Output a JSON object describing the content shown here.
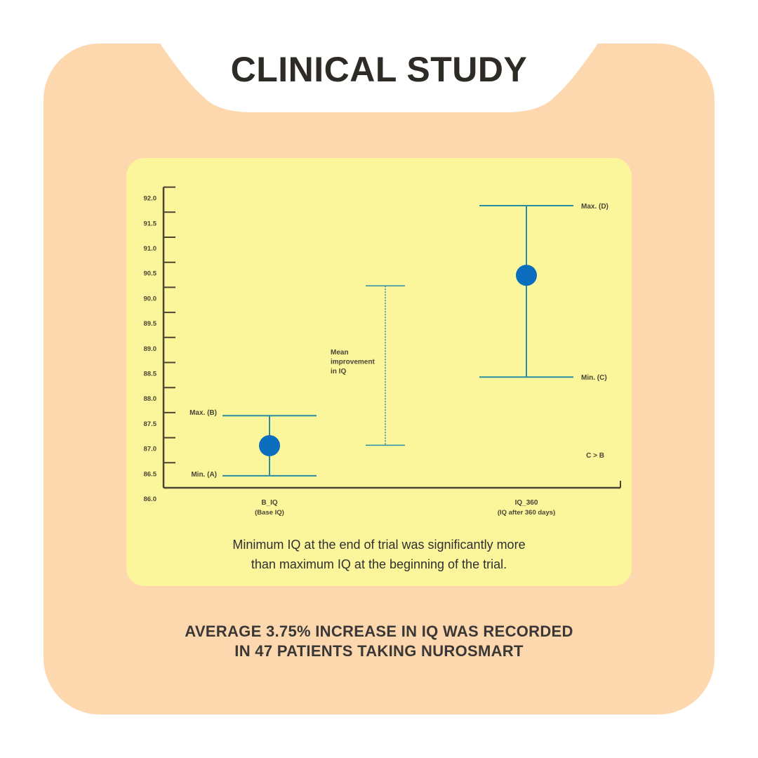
{
  "header": {
    "title": "CLINICAL STUDY"
  },
  "caption": {
    "line1": "Minimum IQ at the end of trial was significantly more",
    "line2": "than maximum IQ at the beginning of the trial."
  },
  "footer": {
    "line1": "AVERAGE 3.75% INCREASE IN IQ WAS RECORDED",
    "line2": "IN 47 PATIENTS TAKING NUROSMART"
  },
  "colors": {
    "card": "#FDD8AE",
    "panel": "#FBF59C",
    "line": "#2A8CA3",
    "dot": "#0A6DBD",
    "axis": "#4a4430"
  },
  "chart_data": {
    "type": "errorbar",
    "ylim": [
      86.0,
      92.0
    ],
    "yticks": [
      "86.0",
      "86.5",
      "87.0",
      "87.5",
      "88.0",
      "88.5",
      "89.0",
      "89.5",
      "90.0",
      "90.5",
      "91.0",
      "91.5",
      "92.0"
    ],
    "categories": [
      {
        "label": "B_IQ",
        "sublabel": "(Base IQ)",
        "min": 86.45,
        "mean": 87.05,
        "max": 87.65,
        "min_label": "Min. (A)",
        "max_label": "Max. (B)"
      },
      {
        "label": "IQ_360",
        "sublabel": "(IQ after 360 days)",
        "min": 88.42,
        "mean": 90.45,
        "max": 91.84,
        "min_label": "Min. (C)",
        "max_label": "Max. (D)"
      }
    ],
    "improvement": {
      "label_lines": [
        "Mean",
        "improvement",
        "in IQ"
      ],
      "from": 87.06,
      "to": 90.24
    },
    "annotation": "C > B"
  }
}
